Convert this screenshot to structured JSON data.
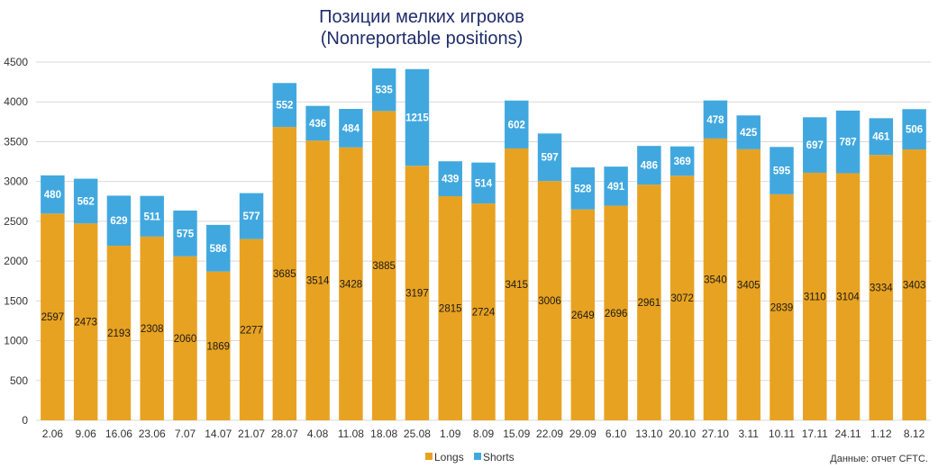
{
  "chart_data": {
    "type": "bar",
    "stacked": true,
    "title": "Позиции мелких игроков",
    "subtitle": "(Nonreportable positions)",
    "categories": [
      "2.06",
      "9.06",
      "16.06",
      "23.06",
      "7.07",
      "14.07",
      "21.07",
      "28.07",
      "4.08",
      "11.08",
      "18.08",
      "25.08",
      "1.09",
      "8.09",
      "15.09",
      "22.09",
      "29.09",
      "6.10",
      "13.10",
      "20.10",
      "27.10",
      "3.11",
      "10.11",
      "17.11",
      "24.11",
      "1.12",
      "8.12"
    ],
    "series": [
      {
        "name": "Longs",
        "color": "#E8A221",
        "values": [
          2597,
          2473,
          2193,
          2308,
          2060,
          1869,
          2277,
          3685,
          3514,
          3428,
          3885,
          3197,
          2815,
          2724,
          3415,
          3006,
          2649,
          2696,
          2961,
          3072,
          3540,
          3405,
          2839,
          3110,
          3104,
          3334,
          3403
        ]
      },
      {
        "name": "Shorts",
        "color": "#41A8DF",
        "values": [
          480,
          562,
          629,
          511,
          575,
          586,
          577,
          552,
          436,
          484,
          535,
          1215,
          439,
          514,
          602,
          597,
          528,
          491,
          486,
          369,
          478,
          425,
          595,
          697,
          787,
          461,
          506
        ]
      }
    ],
    "ylim": [
      0,
      4500
    ],
    "yticks": [
      0,
      500,
      1000,
      1500,
      2000,
      2500,
      3000,
      3500,
      4000,
      4500
    ],
    "grid": true,
    "legend": "bottom"
  },
  "source_note": "Данные: отчет CFTC."
}
